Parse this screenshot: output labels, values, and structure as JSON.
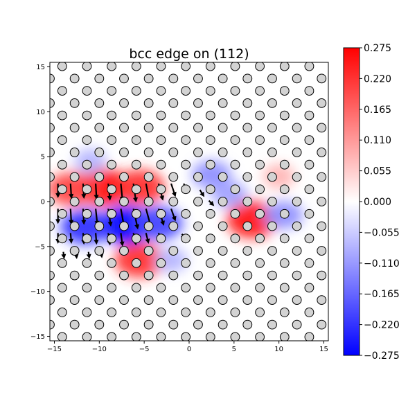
{
  "chart_data": {
    "type": "heatmap",
    "title": "bcc edge on (112)",
    "xlabel": "",
    "ylabel": "",
    "xlim": [
      -15.5,
      15.5
    ],
    "ylim": [
      -15.5,
      15.5
    ],
    "x_ticks": [
      -15,
      -10,
      -5,
      0,
      5,
      10,
      15
    ],
    "y_ticks": [
      -15,
      -10,
      -5,
      0,
      5,
      10,
      15
    ],
    "grid": false,
    "colormap": "bwr",
    "colorbar": {
      "min": -0.275,
      "max": 0.275,
      "ticks": [
        "0.275",
        "0.220",
        "0.165",
        "0.110",
        "0.055",
        "0.000",
        "-0.055",
        "-0.110",
        "-0.165",
        "-0.220",
        "-0.275"
      ],
      "colors": {
        "low": "#0000ff",
        "mid": "#ffffff",
        "high": "#ff0000"
      }
    },
    "atoms": {
      "row_spacing_y": 1.37,
      "col_spacing_x": 2.75,
      "row_offset_x": 1.375,
      "marker": "circle",
      "face_color": "#d3d3d3",
      "edge_color": "#000000"
    },
    "field_hotspots": [
      {
        "x": -9.5,
        "y": 1.6,
        "value": 0.26
      },
      {
        "x": -5.5,
        "y": 1.6,
        "value": 0.22
      },
      {
        "x": -13.0,
        "y": 1.4,
        "value": 0.2
      },
      {
        "x": -11.0,
        "y": 4.5,
        "value": -0.08
      },
      {
        "x": -7.0,
        "y": -2.6,
        "value": -0.275
      },
      {
        "x": -11.5,
        "y": -2.8,
        "value": -0.22
      },
      {
        "x": -3.5,
        "y": -2.4,
        "value": -0.2
      },
      {
        "x": 2.5,
        "y": 3.0,
        "value": -0.12
      },
      {
        "x": 7.0,
        "y": -2.0,
        "value": 0.25
      },
      {
        "x": 4.5,
        "y": 0.8,
        "value": -0.1
      },
      {
        "x": -5.5,
        "y": -6.5,
        "value": 0.22
      },
      {
        "x": 10.5,
        "y": -1.5,
        "value": -0.12
      },
      {
        "x": 10.0,
        "y": 2.8,
        "value": 0.08
      },
      {
        "x": -2.0,
        "y": -6.5,
        "value": -0.08
      }
    ],
    "displacement_arrows": [
      {
        "x": -14.6,
        "y": 2.0,
        "dx": 0.0,
        "dy": -1.6
      },
      {
        "x": -13.2,
        "y": 2.0,
        "dx": 0.1,
        "dy": -1.7
      },
      {
        "x": -11.8,
        "y": 2.0,
        "dx": 0.1,
        "dy": -1.7
      },
      {
        "x": -10.4,
        "y": 2.0,
        "dx": 0.1,
        "dy": -1.8
      },
      {
        "x": -9.0,
        "y": 2.0,
        "dx": 0.2,
        "dy": -1.9
      },
      {
        "x": -7.6,
        "y": 2.0,
        "dx": 0.2,
        "dy": -2.0
      },
      {
        "x": -6.2,
        "y": 2.0,
        "dx": 0.3,
        "dy": -2.1
      },
      {
        "x": -4.8,
        "y": 2.0,
        "dx": 0.4,
        "dy": -2.1
      },
      {
        "x": -3.4,
        "y": 2.0,
        "dx": 0.5,
        "dy": -1.9
      },
      {
        "x": -2.0,
        "y": 2.0,
        "dx": 0.5,
        "dy": -1.5
      },
      {
        "x": -0.6,
        "y": 2.0,
        "dx": 0.4,
        "dy": -1.0
      },
      {
        "x": -14.6,
        "y": -0.8,
        "dx": 0.0,
        "dy": -1.7
      },
      {
        "x": -13.2,
        "y": -0.8,
        "dx": 0.1,
        "dy": -1.8
      },
      {
        "x": -11.8,
        "y": -0.8,
        "dx": 0.1,
        "dy": -1.8
      },
      {
        "x": -10.4,
        "y": -0.8,
        "dx": 0.2,
        "dy": -1.9
      },
      {
        "x": -9.0,
        "y": -0.8,
        "dx": 0.3,
        "dy": -2.0
      },
      {
        "x": -7.6,
        "y": -0.8,
        "dx": 0.4,
        "dy": -2.2
      },
      {
        "x": -6.2,
        "y": -0.8,
        "dx": 0.5,
        "dy": -2.3
      },
      {
        "x": -4.8,
        "y": -0.8,
        "dx": 0.6,
        "dy": -2.2
      },
      {
        "x": -3.4,
        "y": -0.8,
        "dx": 0.6,
        "dy": -1.9
      },
      {
        "x": -2.0,
        "y": -0.8,
        "dx": 0.5,
        "dy": -1.4
      },
      {
        "x": -14.6,
        "y": -3.5,
        "dx": 0.0,
        "dy": -1.2
      },
      {
        "x": -13.2,
        "y": -3.5,
        "dx": 0.1,
        "dy": -1.2
      },
      {
        "x": -11.8,
        "y": -3.5,
        "dx": 0.1,
        "dy": -1.3
      },
      {
        "x": -10.4,
        "y": -3.5,
        "dx": 0.1,
        "dy": -1.3
      },
      {
        "x": -9.0,
        "y": -3.5,
        "dx": 0.2,
        "dy": -1.4
      },
      {
        "x": -7.6,
        "y": -3.5,
        "dx": 0.2,
        "dy": -1.5
      },
      {
        "x": -6.2,
        "y": -3.5,
        "dx": 0.3,
        "dy": -1.4
      },
      {
        "x": -4.8,
        "y": -3.5,
        "dx": 0.3,
        "dy": -1.2
      },
      {
        "x": -3.4,
        "y": -3.5,
        "dx": 0.3,
        "dy": -0.9
      },
      {
        "x": -14.0,
        "y": -5.6,
        "dx": 0.1,
        "dy": -0.8
      },
      {
        "x": -12.6,
        "y": -5.6,
        "dx": 0.1,
        "dy": -0.8
      },
      {
        "x": -11.2,
        "y": -5.6,
        "dx": 0.1,
        "dy": -0.8
      },
      {
        "x": -9.8,
        "y": -5.6,
        "dx": 0.1,
        "dy": -0.7
      },
      {
        "x": 1.2,
        "y": 1.3,
        "dx": 0.5,
        "dy": -0.8
      },
      {
        "x": 2.2,
        "y": 0.1,
        "dx": 0.6,
        "dy": -0.6
      },
      {
        "x": -0.8,
        "y": -3.6,
        "dx": 0.4,
        "dy": -0.6
      }
    ]
  }
}
